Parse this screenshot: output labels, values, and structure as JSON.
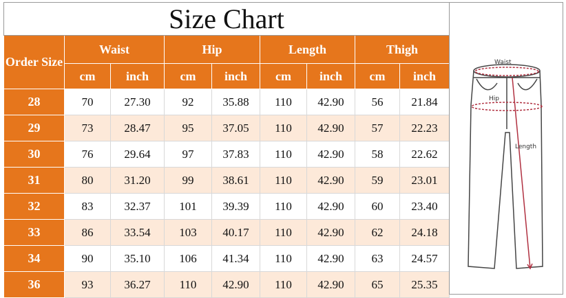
{
  "title": "Size Chart",
  "header": {
    "order_size": "Order Size",
    "groups": [
      {
        "name": "Waist",
        "units": [
          "cm",
          "inch"
        ]
      },
      {
        "name": "Hip",
        "units": [
          "cm",
          "inch"
        ]
      },
      {
        "name": "Length",
        "units": [
          "cm",
          "inch"
        ]
      },
      {
        "name": "Thigh",
        "units": [
          "cm",
          "inch"
        ]
      }
    ]
  },
  "rows": [
    [
      "28",
      "70",
      "27.30",
      "92",
      "35.88",
      "110",
      "42.90",
      "56",
      "21.84"
    ],
    [
      "29",
      "73",
      "28.47",
      "95",
      "37.05",
      "110",
      "42.90",
      "57",
      "22.23"
    ],
    [
      "30",
      "76",
      "29.64",
      "97",
      "37.83",
      "110",
      "42.90",
      "58",
      "22.62"
    ],
    [
      "31",
      "80",
      "31.20",
      "99",
      "38.61",
      "110",
      "42.90",
      "59",
      "23.01"
    ],
    [
      "32",
      "83",
      "32.37",
      "101",
      "39.39",
      "110",
      "42.90",
      "60",
      "23.40"
    ],
    [
      "33",
      "86",
      "33.54",
      "103",
      "40.17",
      "110",
      "42.90",
      "62",
      "24.18"
    ],
    [
      "34",
      "90",
      "35.10",
      "106",
      "41.34",
      "110",
      "42.90",
      "63",
      "24.57"
    ],
    [
      "36",
      "93",
      "36.27",
      "110",
      "42.90",
      "110",
      "42.90",
      "65",
      "25.35"
    ]
  ],
  "diagram": {
    "labels": [
      "Waist",
      "Hip",
      "Length"
    ]
  }
}
